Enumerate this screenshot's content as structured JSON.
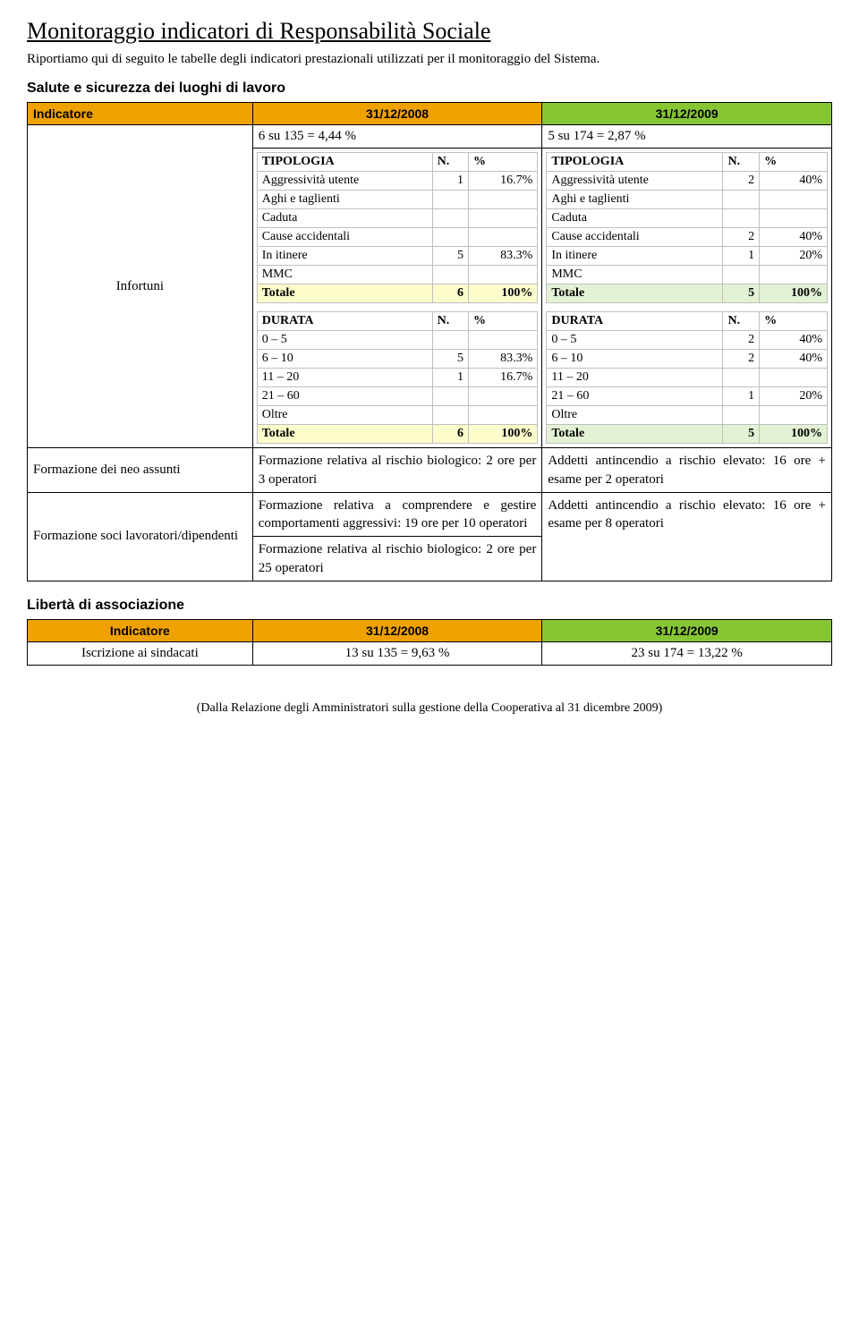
{
  "title": "Monitoraggio indicatori di Responsabilità Sociale",
  "intro": "Riportiamo qui di seguito le tabelle degli indicatori prestazionali utilizzati per il monitoraggio del Sistema.",
  "section1": {
    "title": "Salute e sicurezza dei luoghi di lavoro",
    "header": {
      "indicatore": "Indicatore",
      "col2008": "31/12/2008",
      "col2009": "31/12/2009"
    },
    "infortuni_label": "Infortuni",
    "summary2008": "6 su 135 = 4,44 %",
    "summary2009": "5 su 174 = 2,87 %",
    "tipologia2008": {
      "head": {
        "c1": "TIPOLOGIA",
        "c2": "N.",
        "c3": "%"
      },
      "rows": [
        {
          "label": "Aggressività utente",
          "n": "1",
          "pct": "16.7%"
        },
        {
          "label": "Aghi e taglienti",
          "n": "",
          "pct": ""
        },
        {
          "label": "Caduta",
          "n": "",
          "pct": ""
        },
        {
          "label": "Cause accidentali",
          "n": "",
          "pct": ""
        },
        {
          "label": "In itinere",
          "n": "5",
          "pct": "83.3%"
        },
        {
          "label": "MMC",
          "n": "",
          "pct": ""
        }
      ],
      "totale": {
        "label": "Totale",
        "n": "6",
        "pct": "100%"
      }
    },
    "tipologia2009": {
      "head": {
        "c1": "TIPOLOGIA",
        "c2": "N.",
        "c3": "%"
      },
      "rows": [
        {
          "label": "Aggressività utente",
          "n": "2",
          "pct": "40%"
        },
        {
          "label": "Aghi e taglienti",
          "n": "",
          "pct": ""
        },
        {
          "label": "Caduta",
          "n": "",
          "pct": ""
        },
        {
          "label": "Cause accidentali",
          "n": "2",
          "pct": "40%"
        },
        {
          "label": "In itinere",
          "n": "1",
          "pct": "20%"
        },
        {
          "label": "MMC",
          "n": "",
          "pct": ""
        }
      ],
      "totale": {
        "label": "Totale",
        "n": "5",
        "pct": "100%"
      }
    },
    "durata2008": {
      "head": {
        "c1": "DURATA",
        "c2": "N.",
        "c3": "%"
      },
      "rows": [
        {
          "label": "0 – 5",
          "n": "",
          "pct": ""
        },
        {
          "label": "6 – 10",
          "n": "5",
          "pct": "83.3%"
        },
        {
          "label": "11 – 20",
          "n": "1",
          "pct": "16.7%"
        },
        {
          "label": "21 – 60",
          "n": "",
          "pct": ""
        },
        {
          "label": "Oltre",
          "n": "",
          "pct": ""
        }
      ],
      "totale": {
        "label": "Totale",
        "n": "6",
        "pct": "100%"
      }
    },
    "durata2009": {
      "head": {
        "c1": "DURATA",
        "c2": "N.",
        "c3": "%"
      },
      "rows": [
        {
          "label": "0 – 5",
          "n": "2",
          "pct": "40%"
        },
        {
          "label": "6 – 10",
          "n": "2",
          "pct": "40%"
        },
        {
          "label": "11 – 20",
          "n": "",
          "pct": ""
        },
        {
          "label": "21 – 60",
          "n": "1",
          "pct": "20%"
        },
        {
          "label": "Oltre",
          "n": "",
          "pct": ""
        }
      ],
      "totale": {
        "label": "Totale",
        "n": "5",
        "pct": "100%"
      }
    },
    "row2": {
      "label": "Formazione dei neo assunti",
      "c2008": "Formazione relativa al rischio biologico: 2 ore per 3 operatori",
      "c2009": "Addetti antincendio a rischio elevato: 16 ore + esame per 2 operatori"
    },
    "row3": {
      "label": "Formazione soci lavoratori/dipendenti",
      "c2008a": "Formazione relativa a comprendere e gestire comportamenti aggressivi: 19 ore per 10 operatori",
      "c2008b": "Formazione relativa al rischio biologico: 2 ore per 25 operatori",
      "c2009": "Addetti antincendio a rischio elevato: 16 ore + esame per 8 operatori"
    }
  },
  "section2": {
    "title": "Libertà di associazione",
    "header": {
      "indicatore": "Indicatore",
      "col2008": "31/12/2008",
      "col2009": "31/12/2009"
    },
    "row": {
      "label": "Iscrizione ai sindacati",
      "v2008": "13 su 135 = 9,63 %",
      "v2009": "23 su 174 = 13,22 %"
    }
  },
  "footer": "(Dalla Relazione degli Amministratori sulla gestione della Cooperativa al 31 dicembre 2009)",
  "colors": {
    "orange": "#efa100",
    "green": "#87c633",
    "totale2008_bg": "#fdfdcc",
    "totale2009_bg": "#e3f2d4",
    "inner_border": "#bfbfbf"
  }
}
